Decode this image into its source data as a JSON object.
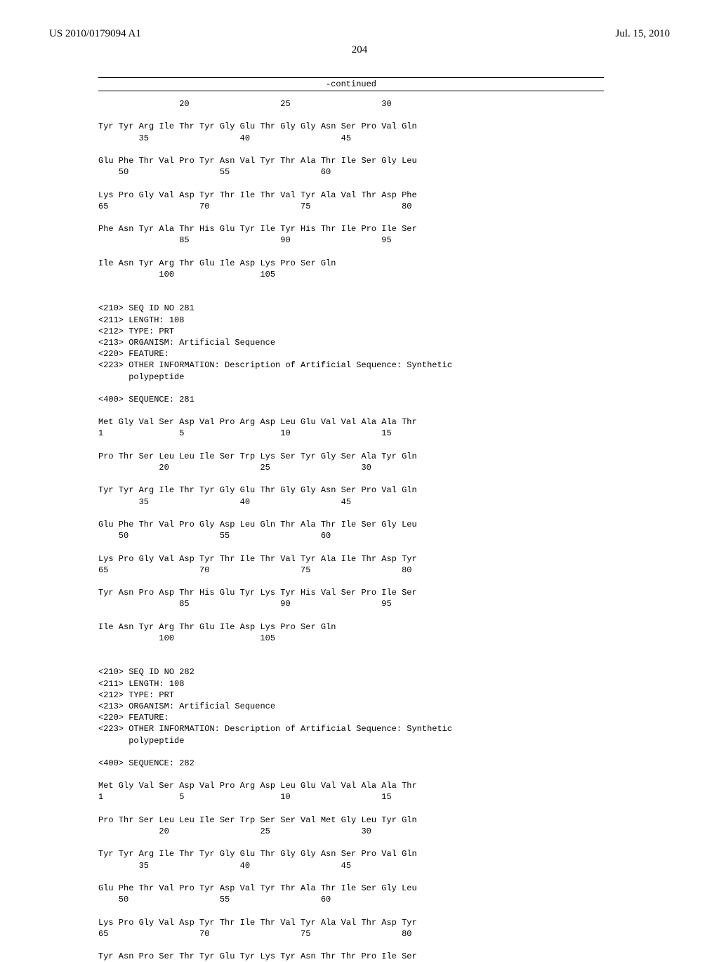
{
  "header": {
    "pub_number": "US 2010/0179094 A1",
    "pub_date": "Jul. 15, 2010"
  },
  "page_number": "204",
  "continued_label": "-continued",
  "blocks": [
    {
      "type": "pair",
      "aa": "                20                  25                  30",
      "num": ""
    },
    {
      "type": "blank"
    },
    {
      "type": "pair",
      "aa": "Tyr Tyr Arg Ile Thr Tyr Gly Glu Thr Gly Gly Asn Ser Pro Val Gln",
      "num": "        35                  40                  45"
    },
    {
      "type": "blank"
    },
    {
      "type": "pair",
      "aa": "Glu Phe Thr Val Pro Tyr Asn Val Tyr Thr Ala Thr Ile Ser Gly Leu",
      "num": "    50                  55                  60"
    },
    {
      "type": "blank"
    },
    {
      "type": "pair",
      "aa": "Lys Pro Gly Val Asp Tyr Thr Ile Thr Val Tyr Ala Val Thr Asp Phe",
      "num": "65                  70                  75                  80"
    },
    {
      "type": "blank"
    },
    {
      "type": "pair",
      "aa": "Phe Asn Tyr Ala Thr His Glu Tyr Ile Tyr His Thr Ile Pro Ile Ser",
      "num": "                85                  90                  95"
    },
    {
      "type": "blank"
    },
    {
      "type": "pair",
      "aa": "Ile Asn Tyr Arg Thr Glu Ile Asp Lys Pro Ser Gln",
      "num": "            100                 105"
    },
    {
      "type": "blank"
    },
    {
      "type": "blank"
    },
    {
      "type": "line",
      "text": "<210> SEQ ID NO 281"
    },
    {
      "type": "line",
      "text": "<211> LENGTH: 108"
    },
    {
      "type": "line",
      "text": "<212> TYPE: PRT"
    },
    {
      "type": "line",
      "text": "<213> ORGANISM: Artificial Sequence"
    },
    {
      "type": "line",
      "text": "<220> FEATURE:"
    },
    {
      "type": "line",
      "text": "<223> OTHER INFORMATION: Description of Artificial Sequence: Synthetic"
    },
    {
      "type": "line",
      "text": "      polypeptide"
    },
    {
      "type": "blank"
    },
    {
      "type": "line",
      "text": "<400> SEQUENCE: 281"
    },
    {
      "type": "blank"
    },
    {
      "type": "pair",
      "aa": "Met Gly Val Ser Asp Val Pro Arg Asp Leu Glu Val Val Ala Ala Thr",
      "num": "1               5                   10                  15"
    },
    {
      "type": "blank"
    },
    {
      "type": "pair",
      "aa": "Pro Thr Ser Leu Leu Ile Ser Trp Lys Ser Tyr Gly Ser Ala Tyr Gln",
      "num": "            20                  25                  30"
    },
    {
      "type": "blank"
    },
    {
      "type": "pair",
      "aa": "Tyr Tyr Arg Ile Thr Tyr Gly Glu Thr Gly Gly Asn Ser Pro Val Gln",
      "num": "        35                  40                  45"
    },
    {
      "type": "blank"
    },
    {
      "type": "pair",
      "aa": "Glu Phe Thr Val Pro Gly Asp Leu Gln Thr Ala Thr Ile Ser Gly Leu",
      "num": "    50                  55                  60"
    },
    {
      "type": "blank"
    },
    {
      "type": "pair",
      "aa": "Lys Pro Gly Val Asp Tyr Thr Ile Thr Val Tyr Ala Ile Thr Asp Tyr",
      "num": "65                  70                  75                  80"
    },
    {
      "type": "blank"
    },
    {
      "type": "pair",
      "aa": "Tyr Asn Pro Asp Thr His Glu Tyr Lys Tyr His Val Ser Pro Ile Ser",
      "num": "                85                  90                  95"
    },
    {
      "type": "blank"
    },
    {
      "type": "pair",
      "aa": "Ile Asn Tyr Arg Thr Glu Ile Asp Lys Pro Ser Gln",
      "num": "            100                 105"
    },
    {
      "type": "blank"
    },
    {
      "type": "blank"
    },
    {
      "type": "line",
      "text": "<210> SEQ ID NO 282"
    },
    {
      "type": "line",
      "text": "<211> LENGTH: 108"
    },
    {
      "type": "line",
      "text": "<212> TYPE: PRT"
    },
    {
      "type": "line",
      "text": "<213> ORGANISM: Artificial Sequence"
    },
    {
      "type": "line",
      "text": "<220> FEATURE:"
    },
    {
      "type": "line",
      "text": "<223> OTHER INFORMATION: Description of Artificial Sequence: Synthetic"
    },
    {
      "type": "line",
      "text": "      polypeptide"
    },
    {
      "type": "blank"
    },
    {
      "type": "line",
      "text": "<400> SEQUENCE: 282"
    },
    {
      "type": "blank"
    },
    {
      "type": "pair",
      "aa": "Met Gly Val Ser Asp Val Pro Arg Asp Leu Glu Val Val Ala Ala Thr",
      "num": "1               5                   10                  15"
    },
    {
      "type": "blank"
    },
    {
      "type": "pair",
      "aa": "Pro Thr Ser Leu Leu Ile Ser Trp Ser Ser Val Met Gly Leu Tyr Gln",
      "num": "            20                  25                  30"
    },
    {
      "type": "blank"
    },
    {
      "type": "pair",
      "aa": "Tyr Tyr Arg Ile Thr Tyr Gly Glu Thr Gly Gly Asn Ser Pro Val Gln",
      "num": "        35                  40                  45"
    },
    {
      "type": "blank"
    },
    {
      "type": "pair",
      "aa": "Glu Phe Thr Val Pro Tyr Asp Val Tyr Thr Ala Thr Ile Ser Gly Leu",
      "num": "    50                  55                  60"
    },
    {
      "type": "blank"
    },
    {
      "type": "pair",
      "aa": "Lys Pro Gly Val Asp Tyr Thr Ile Thr Val Tyr Ala Val Thr Asp Tyr",
      "num": "65                  70                  75                  80"
    },
    {
      "type": "blank"
    },
    {
      "type": "pair",
      "aa": "Tyr Asn Pro Ser Thr Tyr Glu Tyr Lys Tyr Asn Thr Thr Pro Ile Ser",
      "num": ""
    }
  ]
}
